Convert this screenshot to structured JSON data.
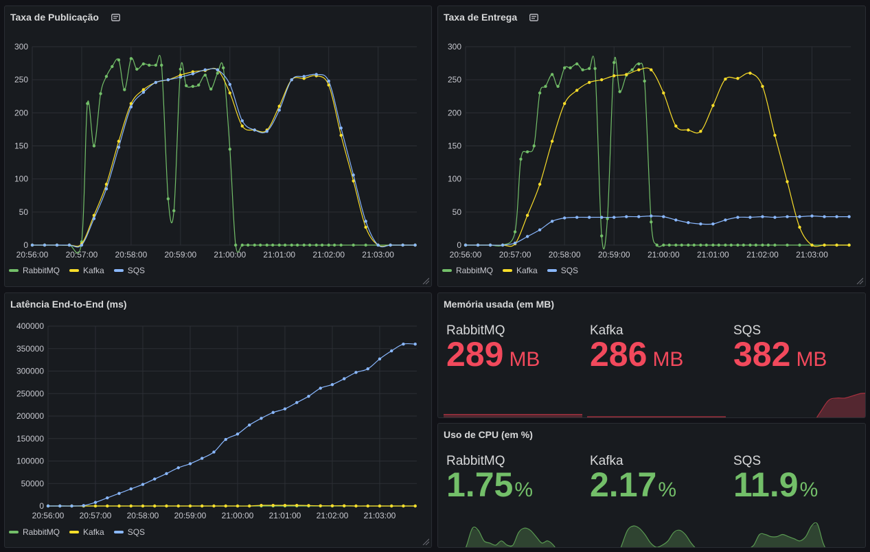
{
  "colors": {
    "rabbitmq": "#73bf69",
    "kafka": "#fade2a",
    "sqs": "#8ab8ff",
    "danger": "#f2495c",
    "ok": "#73bf69"
  },
  "panels": {
    "publicacao": {
      "title": "Taxa de Publicação"
    },
    "entrega": {
      "title": "Taxa de Entrega"
    },
    "latencia": {
      "title": "Latência End-to-End (ms)"
    },
    "memoria": {
      "title": "Memória usada (em MB)"
    },
    "cpu": {
      "title": "Uso de CPU (em %)"
    }
  },
  "legend": [
    "RabbitMQ",
    "Kafka",
    "SQS"
  ],
  "chart_data": [
    {
      "id": "publicacao",
      "type": "line",
      "title": "Taxa de Publicação",
      "x_ticks": [
        "20:56:00",
        "20:57:00",
        "20:58:00",
        "20:59:00",
        "21:00:00",
        "21:01:00",
        "21:02:00",
        "21:03:00"
      ],
      "xlim_seconds_after_2056": [
        0,
        467
      ],
      "ylim": [
        0,
        300
      ],
      "y_ticks": [
        0,
        50,
        100,
        150,
        200,
        250,
        300
      ],
      "series": [
        {
          "name": "RabbitMQ",
          "color": "#73bf69",
          "t": [
            0,
            15,
            30,
            45,
            60,
            67,
            75,
            83,
            90,
            97,
            105,
            112,
            120,
            127,
            135,
            142,
            150,
            157,
            165,
            172,
            180,
            187,
            195,
            202,
            210,
            217,
            225,
            232,
            240,
            247,
            255,
            262,
            270,
            277,
            285,
            292,
            300,
            307,
            315,
            322,
            330,
            337,
            345,
            352,
            360,
            367,
            375,
            390,
            405,
            420,
            435,
            450,
            465
          ],
          "y": [
            0,
            0,
            0,
            0,
            5,
            214,
            150,
            229,
            255,
            270,
            280,
            235,
            282,
            266,
            274,
            272,
            272,
            272,
            70,
            52,
            266,
            241,
            240,
            242,
            257,
            236,
            260,
            268,
            145,
            0,
            0,
            0,
            0,
            0,
            0,
            0,
            0,
            0,
            0,
            0,
            0,
            0,
            0,
            0,
            0,
            0,
            0,
            0,
            0,
            0,
            0,
            0,
            0
          ]
        },
        {
          "name": "Kafka",
          "color": "#fade2a",
          "t": [
            0,
            15,
            30,
            45,
            60,
            75,
            90,
            105,
            120,
            135,
            150,
            165,
            180,
            195,
            210,
            225,
            240,
            255,
            270,
            285,
            300,
            315,
            330,
            345,
            360,
            375,
            390,
            405,
            420,
            435,
            450,
            465
          ],
          "y": [
            0,
            0,
            0,
            0,
            2,
            45,
            92,
            157,
            214,
            235,
            246,
            250,
            257,
            262,
            264,
            265,
            230,
            180,
            174,
            174,
            210,
            250,
            252,
            256,
            242,
            166,
            97,
            27,
            0,
            0,
            0,
            0
          ]
        },
        {
          "name": "SQS",
          "color": "#8ab8ff",
          "t": [
            0,
            15,
            30,
            45,
            60,
            75,
            90,
            105,
            120,
            135,
            150,
            165,
            180,
            195,
            210,
            225,
            240,
            255,
            270,
            285,
            300,
            315,
            330,
            345,
            360,
            375,
            390,
            405,
            420,
            435,
            450,
            465
          ],
          "y": [
            0,
            0,
            0,
            0,
            0,
            40,
            85,
            148,
            209,
            231,
            246,
            250,
            254,
            259,
            265,
            265,
            243,
            188,
            174,
            172,
            204,
            250,
            255,
            258,
            248,
            177,
            106,
            36,
            0,
            0,
            0,
            0
          ]
        }
      ]
    },
    {
      "id": "entrega",
      "type": "line",
      "title": "Taxa de Entrega",
      "x_ticks": [
        "20:56:00",
        "20:57:00",
        "20:58:00",
        "20:59:00",
        "21:00:00",
        "21:01:00",
        "21:02:00",
        "21:03:00"
      ],
      "xlim_seconds_after_2056": [
        0,
        467
      ],
      "ylim": [
        0,
        300
      ],
      "y_ticks": [
        0,
        50,
        100,
        150,
        200,
        250,
        300
      ],
      "series": [
        {
          "name": "RabbitMQ",
          "color": "#73bf69",
          "t": [
            0,
            15,
            30,
            45,
            60,
            67,
            75,
            83,
            90,
            97,
            105,
            112,
            120,
            127,
            135,
            142,
            150,
            157,
            165,
            172,
            180,
            187,
            195,
            202,
            210,
            217,
            225,
            232,
            240,
            247,
            255,
            262,
            270,
            277,
            285,
            292,
            300,
            307,
            315,
            322,
            330,
            337,
            345,
            352,
            360,
            367,
            375,
            390,
            405,
            420,
            435,
            450,
            465
          ],
          "y": [
            0,
            0,
            0,
            0,
            20,
            130,
            141,
            150,
            230,
            240,
            258,
            240,
            268,
            268,
            274,
            265,
            267,
            267,
            14,
            40,
            276,
            232,
            257,
            265,
            274,
            248,
            35,
            0,
            0,
            0,
            0,
            0,
            0,
            0,
            0,
            0,
            0,
            0,
            0,
            0,
            0,
            0,
            0,
            0,
            0,
            0,
            0,
            0,
            0,
            0,
            0,
            0,
            0
          ]
        },
        {
          "name": "Kafka",
          "color": "#fade2a",
          "t": [
            0,
            15,
            30,
            45,
            60,
            75,
            90,
            105,
            120,
            135,
            150,
            165,
            180,
            195,
            210,
            225,
            240,
            255,
            270,
            285,
            300,
            315,
            330,
            345,
            360,
            375,
            390,
            405,
            420,
            435,
            450,
            465
          ],
          "y": [
            0,
            0,
            0,
            0,
            2,
            45,
            92,
            157,
            214,
            234,
            246,
            250,
            256,
            258,
            265,
            265,
            230,
            180,
            174,
            172,
            211,
            251,
            252,
            260,
            240,
            166,
            96,
            27,
            0,
            0,
            0,
            0
          ]
        },
        {
          "name": "SQS",
          "color": "#8ab8ff",
          "t": [
            0,
            15,
            30,
            45,
            60,
            75,
            90,
            105,
            120,
            135,
            150,
            165,
            180,
            195,
            210,
            225,
            240,
            255,
            270,
            285,
            300,
            315,
            330,
            345,
            360,
            375,
            390,
            405,
            420,
            435,
            450,
            465
          ],
          "y": [
            0,
            0,
            0,
            0,
            3,
            13,
            23,
            36,
            41,
            42,
            42,
            42,
            42,
            43,
            43,
            44,
            43,
            38,
            34,
            32,
            32,
            38,
            42,
            42,
            43,
            42,
            43,
            43,
            44,
            43,
            43,
            43
          ]
        }
      ]
    },
    {
      "id": "latencia",
      "type": "line",
      "title": "Latência End-to-End (ms)",
      "x_ticks": [
        "20:56:00",
        "20:57:00",
        "20:58:00",
        "20:59:00",
        "21:00:00",
        "21:01:00",
        "21:02:00",
        "21:03:00"
      ],
      "xlim_seconds_after_2056": [
        0,
        467
      ],
      "ylim": [
        0,
        400000
      ],
      "y_ticks": [
        0,
        50000,
        100000,
        150000,
        200000,
        250000,
        300000,
        350000,
        400000
      ],
      "series": [
        {
          "name": "RabbitMQ",
          "color": "#73bf69",
          "t": [
            0,
            15,
            30,
            45,
            60,
            75,
            90,
            105,
            120,
            135,
            150,
            165,
            180,
            195,
            210,
            225,
            240,
            255,
            270,
            285,
            300,
            315,
            330,
            345,
            360,
            375,
            390,
            405,
            420,
            435,
            450,
            465
          ],
          "y": [
            0,
            0,
            0,
            0,
            0,
            0,
            0,
            0,
            0,
            0,
            0,
            0,
            0,
            0,
            0,
            0,
            0,
            0,
            0,
            0,
            0,
            0,
            0,
            0,
            0,
            0,
            0,
            0,
            0,
            0,
            0,
            0
          ]
        },
        {
          "name": "Kafka",
          "color": "#fade2a",
          "t": [
            0,
            15,
            30,
            45,
            60,
            75,
            90,
            105,
            120,
            135,
            150,
            165,
            180,
            195,
            210,
            225,
            240,
            255,
            270,
            285,
            300,
            315,
            330,
            345,
            360,
            375,
            390,
            405,
            420,
            435,
            450,
            465
          ],
          "y": [
            0,
            0,
            0,
            0,
            0,
            0,
            0,
            0,
            0,
            0,
            0,
            0,
            0,
            0,
            0,
            0,
            0,
            0,
            1500,
            1500,
            1500,
            1500,
            1000,
            500,
            500,
            500,
            0,
            0,
            0,
            0,
            0,
            0
          ]
        },
        {
          "name": "SQS",
          "color": "#8ab8ff",
          "t": [
            0,
            15,
            30,
            45,
            60,
            75,
            90,
            105,
            120,
            135,
            150,
            165,
            180,
            195,
            210,
            225,
            240,
            255,
            270,
            285,
            300,
            315,
            330,
            345,
            360,
            375,
            390,
            405,
            420,
            435,
            450,
            465
          ],
          "y": [
            0,
            0,
            0,
            1000,
            8000,
            18000,
            28000,
            38000,
            48000,
            60000,
            72000,
            85000,
            94000,
            106000,
            120000,
            148000,
            160000,
            180000,
            195000,
            208000,
            216000,
            230000,
            244000,
            262000,
            270000,
            283000,
            297000,
            305000,
            327000,
            345000,
            360000,
            360000
          ]
        }
      ]
    }
  ],
  "memoria": {
    "unit": "MB",
    "stats": [
      {
        "name": "RabbitMQ",
        "value": "289",
        "spark": [
          0.55,
          0.55,
          0.55,
          0.55,
          0.55,
          0.55,
          0.55,
          0.55,
          0.55,
          0.55,
          0.55,
          0.55
        ]
      },
      {
        "name": "Kafka",
        "value": "286",
        "spark": [
          0.5,
          0.5,
          0.5,
          0.5,
          0.5,
          0.5,
          0.5,
          0.5,
          0.5,
          0.5,
          0.5,
          0.5
        ]
      },
      {
        "name": "SQS",
        "value": "382",
        "spark": [
          0.02,
          0.02,
          0.02,
          0.02,
          0.02,
          0.02,
          0.03,
          0.03,
          0.05,
          0.25,
          0.35,
          0.6,
          0.85,
          0.9,
          0.9,
          0.95,
          1.0,
          1.0
        ]
      }
    ]
  },
  "cpu": {
    "unit": "%",
    "stats": [
      {
        "name": "RabbitMQ",
        "value": "1.75",
        "spark": [
          0.05,
          0.2,
          0.1,
          0.15,
          0.5,
          0.9,
          0.85,
          0.6,
          0.55,
          0.5,
          0.6,
          0.5,
          0.5,
          0.8,
          0.9,
          0.85,
          0.7,
          0.55,
          0.6,
          0.5,
          0.3,
          0.15,
          0.1,
          0.05,
          0.05
        ]
      },
      {
        "name": "Kafka",
        "value": "2.17",
        "spark": [
          0.05,
          0.05,
          0.05,
          0.05,
          0.1,
          0.15,
          0.5,
          0.85,
          0.95,
          0.9,
          0.75,
          0.55,
          0.45,
          0.5,
          0.6,
          0.8,
          0.85,
          0.75,
          0.55,
          0.4,
          0.3,
          0.25,
          0.2,
          0.05,
          0.05
        ]
      },
      {
        "name": "SQS",
        "value": "11.9",
        "spark": [
          0.1,
          0.1,
          0.25,
          0.4,
          0.5,
          0.75,
          0.75,
          0.7,
          0.7,
          0.75,
          0.7,
          0.65,
          0.6,
          0.7,
          0.95,
          1.0,
          0.55,
          0.3,
          0.25,
          0.35,
          0.3,
          0.3,
          0.25,
          0.3,
          0.35
        ]
      }
    ]
  }
}
